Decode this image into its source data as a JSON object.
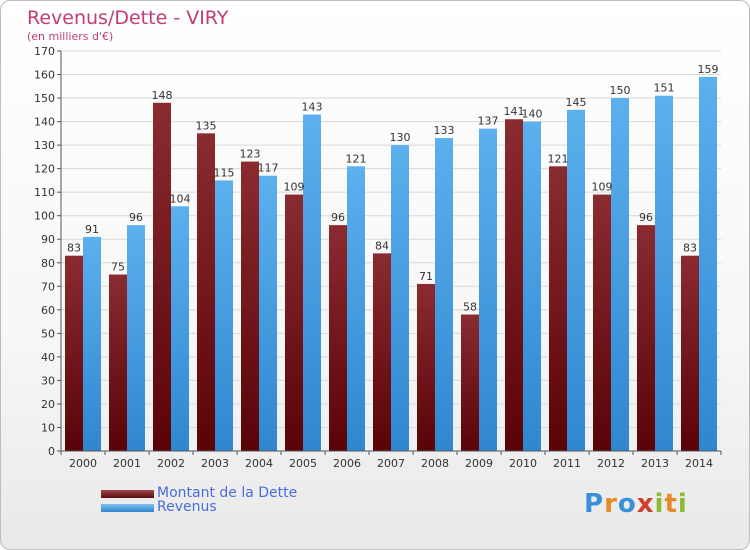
{
  "title": "Revenus/Dette - VIRY",
  "subtitle": "(en milliers d'€)",
  "logo": {
    "text": "Proxiti",
    "letters": [
      "P",
      "r",
      "o",
      "x",
      "i",
      "t",
      "i"
    ],
    "colors": [
      "#3b8fd8",
      "#e8892a",
      "#3b8fd8",
      "#d53d2c",
      "#8bbb33",
      "#e8892a",
      "#8bbb33"
    ]
  },
  "colors": {
    "dette": "#7a1e22",
    "revenus": "#3d9be0",
    "title": "#c03c78",
    "legend_text": "#4a6cd8"
  },
  "chart_data": {
    "type": "bar",
    "title": "Revenus/Dette - VIRY",
    "subtitle": "(en milliers d'€)",
    "categories": [
      "2000",
      "2001",
      "2002",
      "2003",
      "2004",
      "2005",
      "2006",
      "2007",
      "2008",
      "2009",
      "2010",
      "2011",
      "2012",
      "2013",
      "2014"
    ],
    "series": [
      {
        "name": "Montant de la Dette",
        "values": [
          83,
          75,
          148,
          135,
          123,
          109,
          96,
          84,
          71,
          58,
          141,
          121,
          109,
          96,
          83
        ]
      },
      {
        "name": "Revenus",
        "values": [
          91,
          96,
          104,
          115,
          117,
          143,
          121,
          130,
          133,
          137,
          140,
          145,
          150,
          151,
          159
        ]
      }
    ],
    "ylim": [
      0,
      170
    ],
    "yticks": [
      0,
      10,
      20,
      30,
      40,
      50,
      60,
      70,
      80,
      90,
      100,
      110,
      120,
      130,
      140,
      150,
      160,
      170
    ],
    "grid": true,
    "legend": "bottom-left"
  }
}
